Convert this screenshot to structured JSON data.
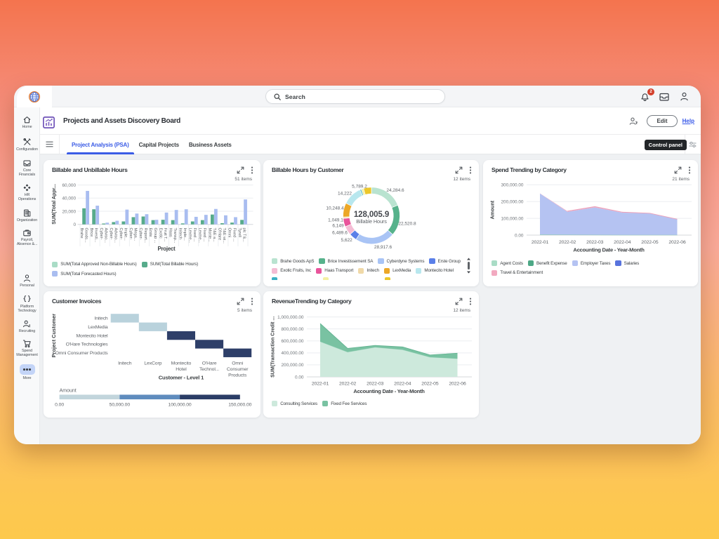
{
  "topbar": {
    "search_placeholder": "Search",
    "notifications_badge": "2"
  },
  "sidebar": {
    "items": [
      {
        "icon": "home-icon",
        "label": "Home"
      },
      {
        "icon": "tools-icon",
        "label": "Configuration"
      },
      {
        "icon": "tray-icon",
        "label": "Core\nFinancials"
      },
      {
        "icon": "diamonds-icon",
        "label": "HR\nOperations"
      },
      {
        "icon": "building-icon",
        "label": "Organization"
      },
      {
        "icon": "briefcase-icon",
        "label": "Payroll,\nAbsence &..."
      },
      {
        "icon": "person-icon",
        "label": "Personal"
      },
      {
        "icon": "braces-icon",
        "label": "Platform\nTechnology"
      },
      {
        "icon": "recruiting-icon",
        "label": "Recruiting"
      },
      {
        "icon": "cart-icon",
        "label": "Spend\nManagement"
      },
      {
        "icon": "ellipsis-icon",
        "label": "More",
        "active": true
      }
    ]
  },
  "header": {
    "title": "Projects and Assets Discovery Board",
    "edit_button": "Edit",
    "help_link": "Help"
  },
  "tabs": {
    "items": [
      {
        "label": "Project Analysis (PSA)",
        "active": true
      },
      {
        "label": "Capital Projects",
        "active": false
      },
      {
        "label": "Business Assets",
        "active": false
      }
    ],
    "control_panel_tooltip": "Control panel"
  },
  "chart_data": [
    {
      "id": "billable-hours",
      "type": "bar",
      "title": "Billable and Unbillable Hours",
      "items_label": "51 items",
      "xlabel": "Project",
      "ylabel": "SUM(Total Appr...",
      "ylim": [
        0,
        60000
      ],
      "yticks": [
        0,
        20000,
        40000,
        60000
      ],
      "ytick_labels": [
        "0",
        "20,000",
        "40,000",
        "60,000"
      ],
      "categories": [
        [
          "Brahe",
          "Goods..."
        ],
        [
          "Brice",
          "Investi..."
        ],
        [
          "Cyber-",
          "Adviso..."
        ],
        [
          "Cyber-",
          "Adviso..."
        ],
        [
          "Cyber-",
          "Imple..."
        ],
        [
          "Cyber-",
          "Mega..."
        ],
        [
          "Cyber-",
          "Report..."
        ],
        [
          "Erste",
          "Group ..."
        ],
        [
          "Exotic",
          "Fruit T..."
        ],
        [
          "Haas",
          "Transp..."
        ],
        [
          "Initech",
          "Imple..."
        ],
        [
          "Lexme...",
          "Fixed ..."
        ],
        [
          "Lexme...",
          "Fixed ..."
        ],
        [
          "Monte...",
          "T&E a..."
        ],
        [
          "O'Hare",
          "T&E wi..."
        ],
        [
          "Omni",
          "Fixed ..."
        ],
        [
          "Tyrell",
          "plc T&..."
        ]
      ],
      "series": [
        {
          "name": "SUM(Total Approved Non-Billable Hours)",
          "color": "#a9dcc6",
          "values": [
            0,
            0,
            0,
            0,
            0,
            0,
            0,
            0,
            0,
            0,
            0,
            0,
            0,
            0,
            0,
            0,
            0
          ]
        },
        {
          "name": "SUM(Total Billable Hours)",
          "color": "#57ab8b",
          "values": [
            24500,
            23000,
            1300,
            3500,
            4500,
            11000,
            12000,
            6500,
            7000,
            6500,
            1500,
            4500,
            6500,
            15000,
            1800,
            2700,
            6800
          ]
        },
        {
          "name": "SUM(Total Forecasted Hours)",
          "color": "#a9bdf0",
          "values": [
            51000,
            28500,
            2600,
            5500,
            22500,
            16500,
            15500,
            7000,
            18000,
            22000,
            23000,
            11500,
            14500,
            23500,
            13800,
            11000,
            38000
          ]
        }
      ]
    },
    {
      "id": "billable-by-customer",
      "type": "donut",
      "title": "Billable Hours by Customer",
      "items_label": "12 items",
      "center_value": "128,005.9",
      "center_label": "Billable Hours",
      "segments": [
        {
          "name": "Brahe Goods ApS",
          "value": 24284.6,
          "label": "24,284.6",
          "color": "#b9e3d0"
        },
        {
          "name": "Brice Investissement SA",
          "value": 22520.8,
          "label": "22,520.8",
          "color": "#56b28b"
        },
        {
          "name": "Cyberdyne Systems",
          "value": 28917.6,
          "label": "28,917.6",
          "color": "#a9c4f5"
        },
        {
          "name": "Erste Group",
          "value": 5622,
          "label": "5,622",
          "color": "#5a7fe8"
        },
        {
          "name": "Exotic Fruits, Inc",
          "value": 6489.6,
          "label": "6,489.6",
          "color": "#f4bcd4"
        },
        {
          "name": "Haas Transport",
          "value": 6149,
          "label": "6,149",
          "color": "#e9549b"
        },
        {
          "name": "Initech",
          "value": 1049.1,
          "label": "1,049.1",
          "color": "#f0d9a8"
        },
        {
          "name": "LexMedia",
          "value": 10248.4,
          "label": "10,248.4",
          "color": "#eca727"
        },
        {
          "name": "Montecito Hotel",
          "value": 14222,
          "label": "14,222",
          "color": "#b8e7ee"
        },
        {
          "name": "",
          "value": 1000,
          "label": "",
          "color": "#3cb0c4"
        },
        {
          "name": "",
          "value": 1713.6,
          "label": "",
          "color": "#f4f0a2"
        },
        {
          "name": "",
          "value": 5789.2,
          "label": "5,789.2",
          "color": "#ecc72a"
        }
      ]
    },
    {
      "id": "spend-trending",
      "type": "area",
      "title": "Spend Trending by Category",
      "items_label": "21 items",
      "xlabel": "Accounting Date - Year-Month",
      "ylabel": "Amount",
      "x": [
        "2022-01",
        "2022-02",
        "2022-03",
        "2022-04",
        "2022-05",
        "2022-06"
      ],
      "ylim": [
        0,
        300000
      ],
      "yticks": [
        0,
        100000,
        200000,
        300000
      ],
      "ytick_labels": [
        "0.00",
        "100,000.00",
        "200,000.00",
        "300,000.00"
      ],
      "series": [
        {
          "name": "Agent Costs",
          "color": "#a9dcc6",
          "edge": "#8fcdb2",
          "values": [
            3000,
            2000,
            1500,
            1000,
            1000,
            1000
          ]
        },
        {
          "name": "Benefit Expense",
          "color": "#4da886",
          "edge": "",
          "values": [
            0,
            0,
            0,
            0,
            0,
            0
          ]
        },
        {
          "name": "Employer Taxes",
          "color": "#b5c3f2",
          "edge": "",
          "values": [
            245000,
            137000,
            164000,
            133000,
            128000,
            93000
          ]
        },
        {
          "name": "Salaries",
          "color": "#5873dd",
          "edge": "",
          "values": [
            0,
            0,
            0,
            0,
            0,
            0
          ]
        },
        {
          "name": "Travel & Entertainment",
          "color": "#f2a9c0",
          "edge": "#eba0ba",
          "values": [
            800,
            4000,
            4500,
            3000,
            1400,
            950
          ]
        }
      ]
    },
    {
      "id": "customer-invoices",
      "type": "heatmap",
      "title": "Customer Invoices",
      "items_label": "5 items",
      "xlabel": "Customer - Level 1",
      "ylabel": "Project Customer",
      "rows": [
        "Initech",
        "LexMedia",
        "Montecito Hotel",
        "O'Hare Technologies",
        "Omni Consumer Products"
      ],
      "cols": [
        [
          "Initech"
        ],
        [
          "LexCorp"
        ],
        [
          "Montecito",
          "Hotel"
        ],
        [
          "O'Hare",
          "Technol..."
        ],
        [
          "Omni",
          "Consumer",
          "Products"
        ]
      ],
      "cells": [
        {
          "row": 0,
          "col": 0,
          "color": "#b9d2dc"
        },
        {
          "row": 1,
          "col": 1,
          "color": "#b9d2dc"
        },
        {
          "row": 2,
          "col": 2,
          "color": "#2e3f69"
        },
        {
          "row": 3,
          "col": 3,
          "color": "#2e3f69"
        },
        {
          "row": 4,
          "col": 4,
          "color": "#2e3f69"
        }
      ],
      "scale": {
        "label": "Amount",
        "colors": [
          "#c2d5dc",
          "#5f8cbe",
          "#2b3d66"
        ],
        "tick_labels": [
          "0.00",
          "50,000.00",
          "100,000.00",
          "150,000.00"
        ]
      }
    },
    {
      "id": "revenue-trending",
      "type": "area",
      "title": "RevenueTrending by Category",
      "items_label": "12 items",
      "xlabel": "Accounting Date - Year-Month",
      "ylabel": "SUM(Transaction Credit ...",
      "x": [
        "2022-01",
        "2022-02",
        "2022-03",
        "2022-04",
        "2022-05",
        "2022-06"
      ],
      "ylim": [
        0,
        1000000
      ],
      "yticks": [
        0,
        200000,
        400000,
        600000,
        800000,
        1000000
      ],
      "ytick_labels": [
        "0.00",
        "200,000.00",
        "400,000.00",
        "600,000.00",
        "800,000.00",
        "1,000,000.00"
      ],
      "series": [
        {
          "name": "Consulting Services",
          "color": "#cde9dc",
          "edge": "#9bd4bb",
          "values": [
            590000,
            415000,
            495000,
            455000,
            330000,
            305000
          ]
        },
        {
          "name": "Fixed Fee Services",
          "color": "#79c2a2",
          "edge": "#62b391",
          "values": [
            300000,
            60000,
            30000,
            45000,
            35000,
            90000
          ]
        }
      ]
    }
  ]
}
